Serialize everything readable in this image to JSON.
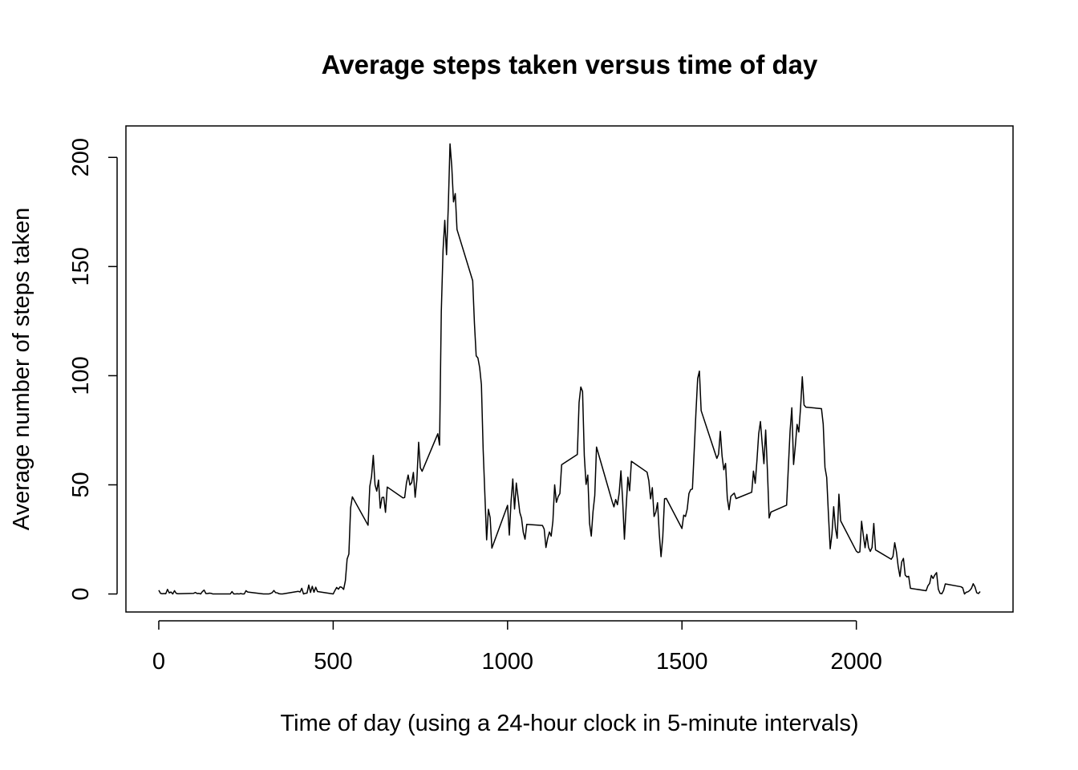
{
  "chart_data": {
    "type": "line",
    "title": "Average steps taken versus time of day",
    "xlabel": "Time of day (using a 24-hour clock in 5-minute intervals)",
    "ylabel": "Average number of steps taken",
    "xlim": [
      -94.2,
      2449.2
    ],
    "ylim": [
      -8.25,
      214.42
    ],
    "xticks": [
      0,
      500,
      1000,
      1500,
      2000
    ],
    "yticks": [
      0,
      50,
      100,
      150,
      200
    ],
    "color": "#000000",
    "x": [
      0,
      5,
      10,
      15,
      20,
      25,
      30,
      35,
      40,
      45,
      50,
      55,
      100,
      105,
      110,
      115,
      120,
      125,
      130,
      135,
      140,
      145,
      150,
      155,
      200,
      205,
      210,
      215,
      220,
      225,
      230,
      235,
      240,
      245,
      250,
      255,
      300,
      305,
      310,
      315,
      320,
      325,
      330,
      335,
      340,
      345,
      350,
      355,
      400,
      405,
      410,
      415,
      420,
      425,
      430,
      435,
      440,
      445,
      450,
      455,
      500,
      505,
      510,
      515,
      520,
      525,
      530,
      535,
      540,
      545,
      550,
      555,
      600,
      605,
      610,
      615,
      620,
      625,
      630,
      635,
      640,
      645,
      650,
      655,
      700,
      705,
      710,
      715,
      720,
      725,
      730,
      735,
      740,
      745,
      750,
      755,
      800,
      805,
      810,
      815,
      820,
      825,
      830,
      835,
      840,
      845,
      850,
      855,
      900,
      905,
      910,
      915,
      920,
      925,
      930,
      935,
      940,
      945,
      950,
      955,
      1000,
      1005,
      1010,
      1015,
      1020,
      1025,
      1030,
      1035,
      1040,
      1045,
      1050,
      1055,
      1100,
      1105,
      1110,
      1115,
      1120,
      1125,
      1130,
      1135,
      1140,
      1145,
      1150,
      1155,
      1200,
      1205,
      1210,
      1215,
      1220,
      1225,
      1230,
      1235,
      1240,
      1245,
      1250,
      1255,
      1300,
      1305,
      1310,
      1315,
      1320,
      1325,
      1330,
      1335,
      1340,
      1345,
      1350,
      1355,
      1400,
      1405,
      1410,
      1415,
      1420,
      1425,
      1430,
      1435,
      1440,
      1445,
      1450,
      1455,
      1500,
      1505,
      1510,
      1515,
      1520,
      1525,
      1530,
      1535,
      1540,
      1545,
      1550,
      1555,
      1600,
      1605,
      1610,
      1615,
      1620,
      1625,
      1630,
      1635,
      1640,
      1645,
      1650,
      1655,
      1700,
      1705,
      1710,
      1715,
      1720,
      1725,
      1730,
      1735,
      1740,
      1745,
      1750,
      1755,
      1800,
      1805,
      1810,
      1815,
      1820,
      1825,
      1830,
      1835,
      1840,
      1845,
      1850,
      1855,
      1900,
      1905,
      1910,
      1915,
      1920,
      1925,
      1930,
      1935,
      1940,
      1945,
      1950,
      1955,
      2000,
      2005,
      2010,
      2015,
      2020,
      2025,
      2030,
      2035,
      2040,
      2045,
      2050,
      2055,
      2100,
      2105,
      2110,
      2115,
      2120,
      2125,
      2130,
      2135,
      2140,
      2145,
      2150,
      2155,
      2200,
      2205,
      2210,
      2215,
      2220,
      2225,
      2230,
      2235,
      2240,
      2245,
      2250,
      2255,
      2300,
      2305,
      2310,
      2315,
      2320,
      2325,
      2330,
      2335,
      2340,
      2345,
      2350,
      2355
    ],
    "values": [
      1.7,
      0.3,
      0.1,
      0.2,
      0.1,
      2.1,
      0.5,
      0.9,
      0,
      1.5,
      0.3,
      0.1,
      0.3,
      0.7,
      0.2,
      0.3,
      0,
      1.1,
      1.8,
      0.2,
      0.2,
      0.4,
      0.3,
      0,
      0,
      0,
      1.1,
      0,
      0,
      0.1,
      0,
      0.2,
      0,
      0,
      1.5,
      0.9,
      0,
      0,
      0,
      0,
      0.2,
      0.6,
      1.6,
      0.6,
      0.5,
      0.1,
      0,
      0,
      1.2,
      0.9,
      2.6,
      0,
      0.3,
      0.4,
      4.1,
      0.7,
      3.5,
      0.8,
      3.1,
      1.1,
      0,
      1.6,
      3,
      2.2,
      3.3,
      3,
      2.1,
      6.1,
      16,
      18.3,
      39.5,
      44.5,
      31.5,
      49.3,
      53.8,
      63.5,
      50,
      47.1,
      52.2,
      39.3,
      44.2,
      44.3,
      37.4,
      49,
      44,
      44.2,
      50.8,
      54.5,
      49.9,
      51,
      55.7,
      44.3,
      52.3,
      69.5,
      57.8,
      56.2,
      73.4,
      68.2,
      129.4,
      157.5,
      171.2,
      155.4,
      177.3,
      206.2,
      195.9,
      179.6,
      183.4,
      167,
      143.5,
      124,
      109.1,
      108.1,
      103.7,
      95.9,
      66.2,
      45.2,
      24.8,
      38.8,
      35,
      21,
      40.6,
      27,
      42.4,
      52.7,
      38.9,
      50.8,
      44.3,
      37.4,
      34.7,
      28.3,
      25.1,
      31.9,
      31.4,
      29.7,
      21.3,
      25.5,
      28.4,
      26.5,
      33.4,
      50,
      42,
      44.6,
      46,
      59.2,
      63.9,
      87.7,
      94.8,
      92.8,
      63.4,
      50.2,
      54.5,
      32.4,
      26.5,
      37.7,
      45.1,
      67.3,
      42.3,
      39.9,
      43.3,
      40.9,
      46.2,
      56.4,
      42.8,
      25.1,
      39.9,
      53.5,
      47.3,
      60.8,
      55.8,
      51.9,
      43.6,
      48.7,
      35.5,
      37.5,
      41.8,
      27.5,
      17.1,
      26.1,
      43.6,
      43.8,
      30,
      36.1,
      35.5,
      38.8,
      46,
      47.8,
      48.1,
      65.3,
      82.9,
      98.7,
      102.1,
      84,
      62.1,
      64.1,
      74.5,
      63.2,
      56.9,
      59.8,
      43.9,
      38.6,
      44.7,
      45.5,
      46.2,
      43.7,
      46.6,
      56.3,
      50.7,
      61.2,
      73.4,
      79,
      68.9,
      59.7,
      75.1,
      56.5,
      34.8,
      37.5,
      40.7,
      58,
      74.7,
      85.3,
      59.3,
      67.8,
      77.7,
      74.2,
      85.3,
      99.5,
      86.6,
      85.6,
      84.9,
      77.8,
      58,
      53.4,
      36.3,
      20.7,
      27.4,
      40,
      30.2,
      25.5,
      45.7,
      33.5,
      19.6,
      19,
      19.3,
      33.3,
      26.8,
      21.2,
      27.3,
      21.3,
      19.5,
      21.3,
      32.3,
      20.2,
      15.9,
      17.2,
      23.5,
      19.2,
      12.5,
      8,
      14.7,
      16.3,
      8.7,
      7.8,
      8.1,
      2.6,
      1.5,
      3.7,
      4.8,
      8.5,
      7.1,
      8.7,
      9.8,
      2.2,
      0.3,
      0.1,
      1.6,
      4.6,
      3.3,
      2.8,
      0,
      0.8,
      1,
      1.6,
      2.6,
      4.7,
      3.3,
      0.6,
      0.2,
      1.1
    ]
  }
}
